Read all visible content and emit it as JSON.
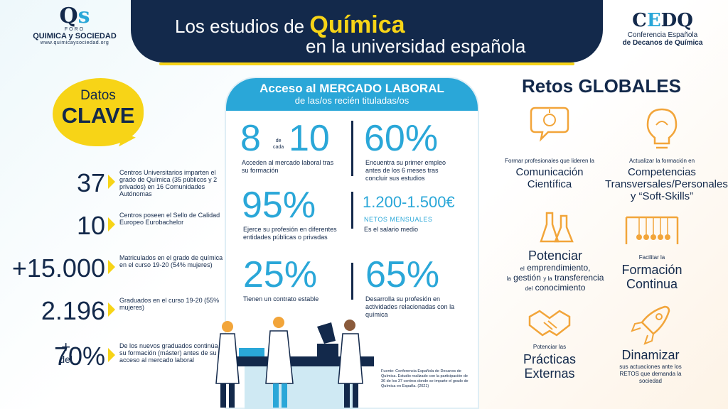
{
  "header": {
    "title_pre": "Los estudios de",
    "title_highlight": "Química",
    "title_line2": "en la universidad española"
  },
  "logo_left": {
    "foro": "FORO",
    "name": "QUIMICA y SOCIEDAD",
    "url": "www.quimicaysociedad.org"
  },
  "logo_right": {
    "line1": "Conferencia Española",
    "line2": "de Decanos de Química"
  },
  "datos_clave": {
    "line1": "Datos",
    "line2": "CLAVE"
  },
  "stats": [
    {
      "num": "37",
      "text": "Centros Universitarios imparten el grado de Química (35 públicos y 2 privados) en 16 Comunidades Autónomas"
    },
    {
      "num": "10",
      "text": "Centros poseen el Sello de Calidad Europeo Eurobachelor"
    },
    {
      "num": "+15.000",
      "text": "Matriculados en el grado de química en el curso 19-20 (54% mujeres)"
    },
    {
      "num": "2.196",
      "text": "Graduados en el curso 19-20 (55% mujeres)"
    },
    {
      "pre1": "+",
      "pre2": "del",
      "num": "70%",
      "text": "De los nuevos graduados continúa su formación (máster) antes de su acceso al mercado laboral"
    }
  ],
  "mercado": {
    "title": "Acceso al MERCADO LABORAL",
    "subtitle": "de las/os recién tituladas/os",
    "item1_a": "8",
    "item1_de": "de",
    "item1_cada": "cada",
    "item1_b": "10",
    "item1_text": "Acceden al mercado laboral tras su formación",
    "item2_num": "60%",
    "item2_text": "Encuentra su primer empleo antes de los 6 meses tras concluir sus estudios",
    "item3_num": "95%",
    "item3_text": "Ejerce su profesión en diferentes entidades públicas o privadas",
    "item4_num": "1.200-1.500€",
    "item4_sub": "NETOS MENSUALES",
    "item4_text": "Es el salario medio",
    "item5_num": "25%",
    "item5_text": "Tienen un contrato estable",
    "item6_num": "65%",
    "item6_text": "Desarrolla su profesión en actividades relacionadas con la química",
    "source": "Fuente: Conferencia Española de Decanos de Química. Estudio realizado con la participación de 36 de los 37 centros donde se imparte el grado de Química en España. (2021)"
  },
  "retos": {
    "title": "Retos GLOBALES",
    "r1_sm": "Formar profesionales que lideren la",
    "r1_lg": "Comunicación Científica",
    "r2_sm": "Actualizar la formación en",
    "r2_lg": "Competencias Transversales/Personales y “Soft-Skills”",
    "r3_lg": "Potenciar",
    "r3_a": "el",
    "r3_b": "emprendimiento,",
    "r3_c": "la",
    "r3_d": "gestión",
    "r3_e": "y la",
    "r3_f": "transferencia",
    "r3_g": "del",
    "r3_h": "conocimiento",
    "r4_sm": "Facilitar la",
    "r4_lg": "Formación Continua",
    "r5_sm": "Potenciar las",
    "r5_lg": "Prácticas Externas",
    "r6_lg": "Dinamizar",
    "r6_sm": "sus actuaciones ante los RETOS que demanda la sociedad"
  },
  "colors": {
    "navy": "#13294b",
    "yellow": "#f7d417",
    "cyan": "#2aa7d8",
    "orange": "#f2a53a"
  }
}
